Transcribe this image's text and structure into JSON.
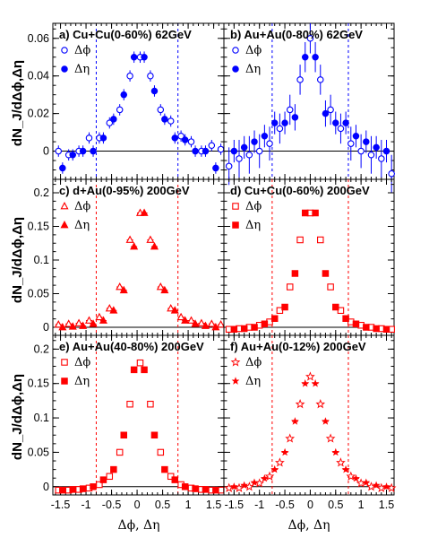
{
  "figure": {
    "ylabel": "dN_J/dΔϕ,Δη",
    "xlabel": "Δϕ, Δη",
    "x_ticks": [
      "-1.5",
      "-1",
      "-0.5",
      "0",
      "0.5",
      "1",
      "1.5"
    ],
    "legend_phi": "Δϕ",
    "legend_eta": "Δη",
    "colors": {
      "blue": "#0000ff",
      "red": "#ff0000",
      "axis": "#000000"
    }
  },
  "chart_data": [
    {
      "type": "scatter",
      "panel": "a",
      "title": "a) Cu+Cu(0-60%) 62GeV",
      "color": "#0000ff",
      "xlim": [
        -1.65,
        1.7
      ],
      "ylim": [
        -0.015,
        0.068
      ],
      "yticks": [
        "0",
        "0.02",
        "0.04",
        "0.06"
      ],
      "vlines": [
        -0.8,
        0.8
      ],
      "series": [
        {
          "name": "Δϕ",
          "marker": "circle-open",
          "x": [
            -1.54,
            -1.34,
            -1.14,
            -0.94,
            -0.74,
            -0.54,
            -0.34,
            -0.14,
            0.06,
            0.26,
            0.46,
            0.66,
            0.86,
            1.06,
            1.26,
            1.46,
            1.64
          ],
          "y": [
            0.0,
            -0.002,
            0.0,
            0.007,
            0.007,
            0.015,
            0.022,
            0.04,
            0.05,
            0.04,
            0.022,
            0.016,
            0.008,
            0.005,
            0.0,
            0.003,
            0.001
          ],
          "err": [
            0.003,
            0.003,
            0.003,
            0.003,
            0.003,
            0.003,
            0.003,
            0.003,
            0.003,
            0.003,
            0.003,
            0.003,
            0.003,
            0.003,
            0.003,
            0.003,
            0.003
          ]
        },
        {
          "name": "Δη",
          "marker": "circle-filled",
          "x": [
            -1.46,
            -1.26,
            -1.06,
            -0.86,
            -0.66,
            -0.46,
            -0.26,
            -0.06,
            0.14,
            0.34,
            0.54,
            0.74,
            0.94,
            1.14,
            1.34,
            1.54
          ],
          "y": [
            -0.009,
            -0.002,
            0.0,
            0.0,
            0.007,
            0.017,
            0.03,
            0.05,
            0.05,
            0.032,
            0.017,
            0.007,
            0.006,
            0.0,
            0.0,
            -0.009
          ],
          "err": [
            0.003,
            0.003,
            0.003,
            0.003,
            0.003,
            0.003,
            0.003,
            0.003,
            0.003,
            0.003,
            0.003,
            0.003,
            0.003,
            0.003,
            0.003,
            0.003
          ]
        }
      ]
    },
    {
      "type": "scatter",
      "panel": "b",
      "title": "b) Au+Au(0-80%) 62GeV",
      "color": "#0000ff",
      "xlim": [
        -1.7,
        1.65
      ],
      "ylim": [
        -0.015,
        0.068
      ],
      "yticks": [
        "0",
        "0.02",
        "0.04",
        "0.06"
      ],
      "vlines": [
        -0.75,
        0.75
      ],
      "series": [
        {
          "name": "Δϕ",
          "marker": "circle-open",
          "x": [
            -1.6,
            -1.4,
            -1.2,
            -1.0,
            -0.8,
            -0.6,
            -0.4,
            -0.2,
            0.0,
            0.2,
            0.4,
            0.6,
            0.8,
            1.0,
            1.2,
            1.4,
            1.6
          ],
          "y": [
            -0.008,
            -0.004,
            -0.002,
            0.0,
            0.004,
            0.012,
            0.022,
            0.038,
            0.06,
            0.038,
            0.022,
            0.012,
            0.004,
            0.0,
            -0.002,
            -0.004,
            -0.012
          ],
          "err": [
            0.01,
            0.01,
            0.01,
            0.009,
            0.009,
            0.008,
            0.008,
            0.008,
            0.008,
            0.008,
            0.008,
            0.008,
            0.009,
            0.009,
            0.01,
            0.01,
            0.01
          ]
        },
        {
          "name": "Δη",
          "marker": "circle-filled",
          "x": [
            -1.5,
            -1.3,
            -1.1,
            -0.9,
            -0.7,
            -0.5,
            -0.3,
            -0.1,
            0.1,
            0.3,
            0.5,
            0.7,
            0.9,
            1.1,
            1.3,
            1.5
          ],
          "y": [
            0.0,
            0.002,
            0.005,
            0.008,
            0.015,
            0.015,
            0.018,
            0.05,
            0.05,
            0.02,
            0.015,
            0.015,
            0.008,
            0.005,
            0.002,
            0.0
          ],
          "err": [
            0.006,
            0.006,
            0.006,
            0.006,
            0.006,
            0.006,
            0.007,
            0.008,
            0.008,
            0.007,
            0.006,
            0.006,
            0.006,
            0.006,
            0.006,
            0.006
          ]
        }
      ]
    },
    {
      "type": "scatter",
      "panel": "c",
      "title": "c) d+Au(0-95%) 200GeV",
      "color": "#ff0000",
      "xlim": [
        -1.65,
        1.7
      ],
      "ylim": [
        -0.012,
        0.22
      ],
      "yticks": [
        "0",
        "0.05",
        "0.1",
        "0.15",
        "0.2"
      ],
      "vlines": [
        -0.8,
        0.8
      ],
      "series": [
        {
          "name": "Δϕ",
          "marker": "triangle-open",
          "x": [
            -1.54,
            -1.34,
            -1.14,
            -0.94,
            -0.74,
            -0.54,
            -0.34,
            -0.14,
            0.06,
            0.26,
            0.46,
            0.66,
            0.86,
            1.06,
            1.26,
            1.46,
            1.64
          ],
          "y": [
            0.004,
            0.005,
            0.006,
            0.01,
            0.015,
            0.028,
            0.06,
            0.13,
            0.17,
            0.13,
            0.06,
            0.028,
            0.015,
            0.01,
            0.006,
            0.005,
            0.004
          ],
          "err": [
            0.002,
            0.002,
            0.002,
            0.002,
            0.002,
            0.002,
            0.002,
            0.002,
            0.002,
            0.002,
            0.002,
            0.002,
            0.002,
            0.002,
            0.002,
            0.002,
            0.002
          ]
        },
        {
          "name": "Δη",
          "marker": "triangle-filled",
          "x": [
            -1.46,
            -1.26,
            -1.06,
            -0.86,
            -0.66,
            -0.46,
            -0.26,
            -0.06,
            0.14,
            0.34,
            0.54,
            0.74,
            0.94,
            1.14,
            1.34,
            1.54
          ],
          "y": [
            0.0,
            0.001,
            0.002,
            0.005,
            0.01,
            0.025,
            0.055,
            0.12,
            0.17,
            0.12,
            0.055,
            0.025,
            0.01,
            0.005,
            0.002,
            0.0
          ],
          "err": [
            0.002,
            0.002,
            0.002,
            0.002,
            0.002,
            0.002,
            0.002,
            0.002,
            0.002,
            0.002,
            0.002,
            0.002,
            0.002,
            0.002,
            0.002,
            0.002
          ]
        }
      ]
    },
    {
      "type": "scatter",
      "panel": "d",
      "title": "d) Cu+Cu(0-60%) 200GeV",
      "color": "#ff0000",
      "xlim": [
        -1.7,
        1.65
      ],
      "ylim": [
        -0.012,
        0.22
      ],
      "yticks": [
        "0",
        "0.05",
        "0.1",
        "0.15",
        "0.2"
      ],
      "vlines": [
        -0.75,
        0.75
      ],
      "series": [
        {
          "name": "Δϕ",
          "marker": "square-open",
          "x": [
            -1.6,
            -1.4,
            -1.2,
            -1.0,
            -0.8,
            -0.6,
            -0.4,
            -0.2,
            0.0,
            0.2,
            0.4,
            0.6,
            0.8,
            1.0,
            1.2,
            1.4,
            1.6
          ],
          "y": [
            -0.003,
            -0.002,
            0.0,
            0.003,
            0.008,
            0.025,
            0.06,
            0.13,
            0.17,
            0.13,
            0.06,
            0.025,
            0.008,
            0.003,
            0.0,
            -0.002,
            -0.003
          ],
          "err": [
            0.002,
            0.002,
            0.002,
            0.002,
            0.002,
            0.002,
            0.002,
            0.002,
            0.002,
            0.002,
            0.002,
            0.002,
            0.002,
            0.002,
            0.002,
            0.002,
            0.002
          ]
        },
        {
          "name": "Δη",
          "marker": "square-filled",
          "x": [
            -1.5,
            -1.3,
            -1.1,
            -0.9,
            -0.7,
            -0.5,
            -0.3,
            -0.1,
            0.1,
            0.3,
            0.5,
            0.7,
            0.9,
            1.1,
            1.3,
            1.5
          ],
          "y": [
            -0.003,
            -0.002,
            0.0,
            0.005,
            0.013,
            0.03,
            0.08,
            0.17,
            0.17,
            0.08,
            0.03,
            0.013,
            0.005,
            0.0,
            -0.002,
            -0.003
          ],
          "err": [
            0.002,
            0.002,
            0.002,
            0.002,
            0.002,
            0.002,
            0.002,
            0.002,
            0.002,
            0.002,
            0.002,
            0.002,
            0.002,
            0.002,
            0.002,
            0.002
          ]
        }
      ]
    },
    {
      "type": "scatter",
      "panel": "e",
      "title": "e) Au+Au(40-80%) 200GeV",
      "color": "#ff0000",
      "xlim": [
        -1.65,
        1.7
      ],
      "ylim": [
        -0.012,
        0.22
      ],
      "yticks": [
        "0",
        "0.05",
        "0.1",
        "0.15",
        "0.2"
      ],
      "vlines": [
        -0.8,
        0.8
      ],
      "series": [
        {
          "name": "Δϕ",
          "marker": "square-open",
          "x": [
            -1.54,
            -1.34,
            -1.14,
            -0.94,
            -0.74,
            -0.54,
            -0.34,
            -0.14,
            0.06,
            0.26,
            0.46,
            0.66,
            0.86,
            1.06,
            1.26,
            1.46,
            1.64
          ],
          "y": [
            -0.005,
            -0.005,
            -0.004,
            -0.002,
            0.003,
            0.015,
            0.05,
            0.12,
            0.18,
            0.12,
            0.05,
            0.015,
            0.003,
            -0.002,
            -0.004,
            -0.005,
            -0.005
          ],
          "err": [
            0.002,
            0.002,
            0.002,
            0.002,
            0.002,
            0.002,
            0.002,
            0.002,
            0.002,
            0.002,
            0.002,
            0.002,
            0.002,
            0.002,
            0.002,
            0.002,
            0.002
          ]
        },
        {
          "name": "Δη",
          "marker": "square-filled",
          "x": [
            -1.46,
            -1.26,
            -1.06,
            -0.86,
            -0.66,
            -0.46,
            -0.26,
            -0.06,
            0.14,
            0.34,
            0.54,
            0.74,
            0.94,
            1.14,
            1.34,
            1.54
          ],
          "y": [
            -0.005,
            -0.004,
            -0.003,
            0.0,
            0.01,
            0.025,
            0.075,
            0.17,
            0.17,
            0.075,
            0.025,
            0.01,
            0.0,
            -0.003,
            -0.004,
            -0.005
          ],
          "err": [
            0.002,
            0.002,
            0.002,
            0.002,
            0.002,
            0.002,
            0.002,
            0.002,
            0.002,
            0.002,
            0.002,
            0.002,
            0.002,
            0.002,
            0.002,
            0.002
          ]
        }
      ]
    },
    {
      "type": "scatter",
      "panel": "f",
      "title": "f) Au+Au(0-12%) 200GeV",
      "color": "#ff0000",
      "xlim": [
        -1.7,
        1.65
      ],
      "ylim": [
        -0.012,
        0.22
      ],
      "yticks": [
        "0",
        "0.05",
        "0.1",
        "0.15",
        "0.2"
      ],
      "vlines": [
        -0.75,
        0.75
      ],
      "series": [
        {
          "name": "Δϕ",
          "marker": "star-open",
          "x": [
            -1.6,
            -1.4,
            -1.2,
            -1.0,
            -0.8,
            -0.6,
            -0.4,
            -0.2,
            0.0,
            0.2,
            0.4,
            0.6,
            0.8,
            1.0,
            1.2,
            1.4,
            1.6
          ],
          "y": [
            -0.002,
            -0.002,
            0.0,
            0.005,
            0.015,
            0.035,
            0.07,
            0.12,
            0.16,
            0.12,
            0.07,
            0.035,
            0.015,
            0.005,
            0.0,
            -0.002,
            -0.002
          ],
          "err": [
            0.003,
            0.003,
            0.003,
            0.003,
            0.003,
            0.003,
            0.003,
            0.003,
            0.003,
            0.003,
            0.003,
            0.003,
            0.003,
            0.003,
            0.003,
            0.003,
            0.003
          ]
        },
        {
          "name": "Δη",
          "marker": "star-filled",
          "x": [
            -1.5,
            -1.3,
            -1.1,
            -0.9,
            -0.7,
            -0.5,
            -0.3,
            -0.1,
            0.1,
            0.3,
            0.5,
            0.7,
            0.9,
            1.1,
            1.3,
            1.5
          ],
          "y": [
            0.0,
            0.002,
            0.006,
            0.012,
            0.025,
            0.05,
            0.095,
            0.15,
            0.15,
            0.095,
            0.05,
            0.025,
            0.012,
            0.006,
            0.002,
            0.0
          ],
          "err": [
            0.003,
            0.003,
            0.003,
            0.003,
            0.003,
            0.003,
            0.003,
            0.003,
            0.003,
            0.003,
            0.003,
            0.003,
            0.003,
            0.003,
            0.003,
            0.003
          ]
        }
      ]
    }
  ]
}
